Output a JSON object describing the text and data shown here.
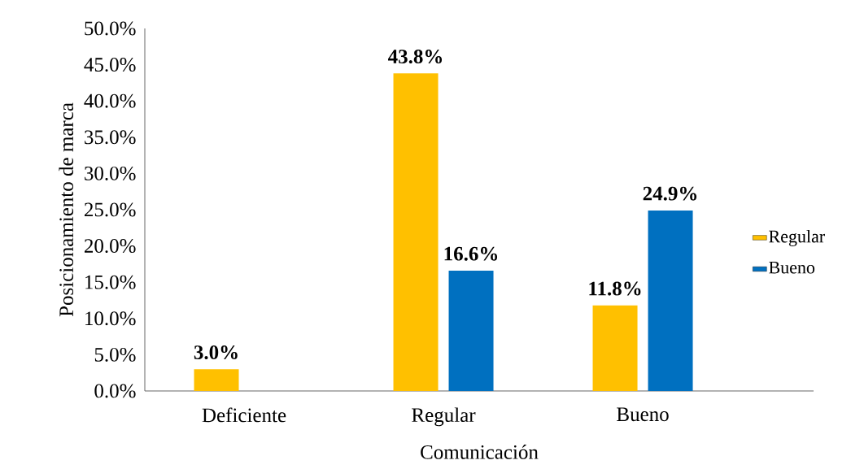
{
  "chart_data": {
    "type": "bar",
    "xlabel": "Comunicación",
    "ylabel": "Posicionamiento de marca",
    "categories": [
      "Deficiente",
      "Regular",
      "Bueno"
    ],
    "series": [
      {
        "name": "Regular",
        "color": "#ffc000",
        "values": [
          3.0,
          43.8,
          11.8
        ],
        "value_labels": [
          "3.0%",
          "43.8%",
          "11.8%"
        ]
      },
      {
        "name": "Bueno",
        "color": "#0070c0",
        "values": [
          null,
          16.6,
          24.9
        ],
        "value_labels": [
          null,
          "16.6%",
          "24.9%"
        ]
      }
    ],
    "ylim": [
      0,
      50
    ],
    "yticks": [
      {
        "value": 0,
        "label": "0.0%"
      },
      {
        "value": 5,
        "label": "5.0%"
      },
      {
        "value": 10,
        "label": "10.0%"
      },
      {
        "value": 15,
        "label": "15.0%"
      },
      {
        "value": 20,
        "label": "20.0%"
      },
      {
        "value": 25,
        "label": "25.0%"
      },
      {
        "value": 30,
        "label": "30.0%"
      },
      {
        "value": 35,
        "label": "35.0%"
      },
      {
        "value": 40,
        "label": "40.0%"
      },
      {
        "value": 45,
        "label": "45.0%"
      },
      {
        "value": 50,
        "label": "50.0%"
      }
    ],
    "grid": false,
    "legend": "right"
  }
}
